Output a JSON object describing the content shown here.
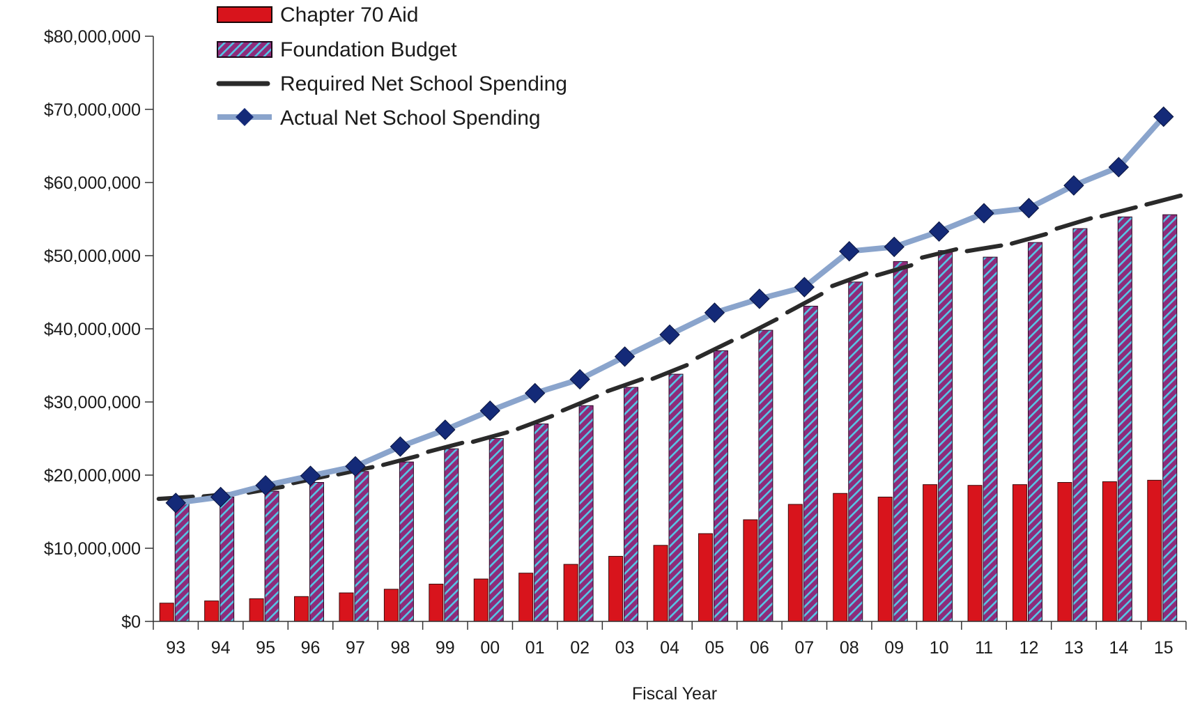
{
  "colors": {
    "chapter70": "#d8141c",
    "foundation_fill": "#8e2b7a",
    "foundation_stripe": "#55c6e6",
    "required": "#2a2a2a",
    "actual_line": "#8aa4cc",
    "actual_marker": "#142a78",
    "axis": "#333333"
  },
  "icons": {
    "actual_marker": "diamond-icon"
  },
  "chart_data": {
    "type": "bar",
    "title": "",
    "xlabel": "Fiscal Year",
    "ylabel": "",
    "ylim": [
      0,
      80000000
    ],
    "ytick_step": 10000000,
    "yticks": [
      "$0",
      "$10,000,000",
      "$20,000,000",
      "$30,000,000",
      "$40,000,000",
      "$50,000,000",
      "$60,000,000",
      "$70,000,000",
      "$80,000,000"
    ],
    "grid": false,
    "legend_position": "top-left",
    "categories": [
      "93",
      "94",
      "95",
      "96",
      "97",
      "98",
      "99",
      "00",
      "01",
      "02",
      "03",
      "04",
      "05",
      "06",
      "07",
      "08",
      "09",
      "10",
      "11",
      "12",
      "13",
      "14",
      "15"
    ],
    "series": [
      {
        "name": "Chapter 70 Aid",
        "kind": "bar",
        "values": [
          2500000,
          2800000,
          3100000,
          3400000,
          3900000,
          4400000,
          5100000,
          5800000,
          6600000,
          7800000,
          8900000,
          10400000,
          12000000,
          13900000,
          16000000,
          17500000,
          17000000,
          18700000,
          18600000,
          18700000,
          19000000,
          19100000,
          19300000
        ]
      },
      {
        "name": "Foundation Budget",
        "kind": "bar",
        "values": [
          16500000,
          17000000,
          17800000,
          19000000,
          20500000,
          21800000,
          23600000,
          25000000,
          27000000,
          29500000,
          32000000,
          33800000,
          37000000,
          39800000,
          43100000,
          46400000,
          49200000,
          50700000,
          49800000,
          51800000,
          53700000,
          55300000,
          55600000
        ]
      },
      {
        "name": "Required Net School Spending",
        "kind": "segment",
        "values": [
          16900000,
          17300000,
          18000000,
          19400000,
          20600000,
          22000000,
          23800000,
          25200000,
          27200000,
          29800000,
          32300000,
          34100000,
          37200000,
          40100000,
          43500000,
          46700000,
          48000000,
          50300000,
          51000000,
          52300000,
          54400000,
          56000000,
          57600000
        ]
      },
      {
        "name": "Actual Net School Spending",
        "kind": "line",
        "values": [
          16200000,
          17000000,
          18600000,
          19900000,
          21200000,
          23900000,
          26200000,
          28800000,
          31200000,
          33100000,
          36200000,
          39200000,
          42200000,
          44100000,
          45700000,
          50600000,
          51200000,
          53300000,
          55800000,
          56500000,
          59600000,
          62100000,
          69000000
        ]
      }
    ]
  }
}
